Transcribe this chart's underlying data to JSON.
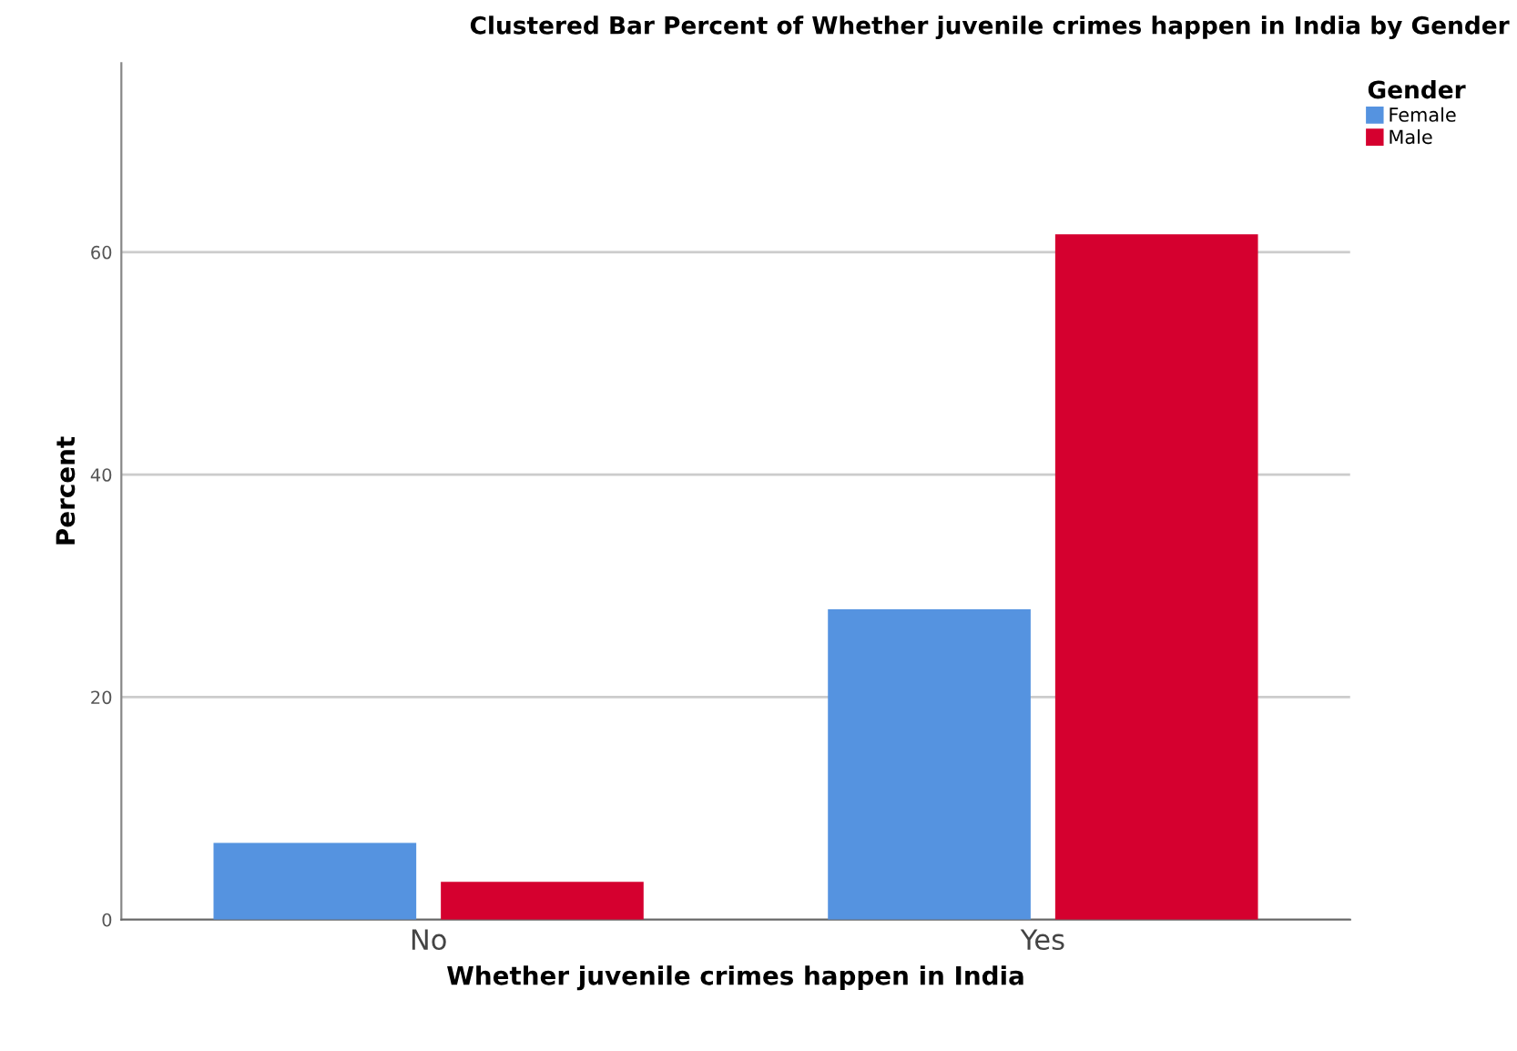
{
  "chart_data": {
    "type": "bar",
    "title": "Clustered Bar Percent of Whether juvenile crimes happen in India by Gender",
    "xlabel": "Whether juvenile crimes happen in India",
    "ylabel": "Percent",
    "legend_title": "Gender",
    "categories": [
      "No",
      "Yes"
    ],
    "series": [
      {
        "name": "Female",
        "color": "#5593e0",
        "values": [
          6.9,
          27.9
        ]
      },
      {
        "name": "Male",
        "color": "#d5002f",
        "values": [
          3.4,
          61.6
        ]
      }
    ],
    "ylim": [
      0,
      77
    ],
    "yticks": [
      0,
      20,
      40,
      60
    ],
    "grid": "y",
    "legend": "top right"
  }
}
